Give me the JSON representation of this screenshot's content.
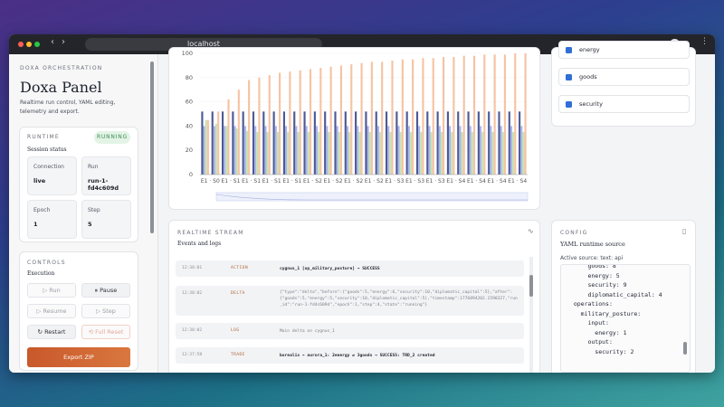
{
  "browser": {
    "url": "localhost"
  },
  "sidebar": {
    "eyebrow": "DOXA ORCHESTRATION",
    "title": "Doxa Panel",
    "subtitle": "Realtime run control, YAML editing, telemetry and export.",
    "runtime": {
      "heading": "RUNTIME",
      "status": "RUNNING",
      "caption": "Session status",
      "fields": [
        {
          "label": "Connection",
          "value": "live"
        },
        {
          "label": "Run",
          "value": "run-1-fd4c609d"
        },
        {
          "label": "Epoch",
          "value": "1"
        },
        {
          "label": "Step",
          "value": "5"
        }
      ]
    },
    "controls": {
      "heading": "CONTROLS",
      "caption": "Execution",
      "buttons": [
        "Run",
        "Pause",
        "Resume",
        "Step",
        "Restart",
        "Full Reset"
      ],
      "export": "Export ZIP"
    }
  },
  "chart_data": {
    "type": "bar",
    "categories": [
      "E1 · S0",
      null,
      "E1 · S1",
      null,
      "E1 · S1",
      null,
      "E1 · S1",
      null,
      "E1 · S1",
      null,
      "E1 · S2",
      null,
      "E1 · S2",
      null,
      "E1 · S2",
      null,
      "E1 · S2",
      null,
      "E1 · S3",
      null,
      "E1 · S3",
      null,
      "E1 · S3",
      null,
      "E1 · S4",
      null,
      "E1 · S4",
      null,
      "E1 · S4",
      null,
      "E1 · S4",
      null
    ],
    "series": [
      {
        "color": "#4d5a96",
        "values": [
          52,
          52,
          52,
          52,
          52,
          52,
          52,
          52,
          52,
          52,
          52,
          52,
          52,
          52,
          52,
          52,
          52,
          52,
          52,
          52,
          52,
          52,
          52,
          52,
          52,
          52,
          52,
          52,
          52,
          52,
          52,
          52
        ]
      },
      {
        "color": "#a9b4ea",
        "values": [
          40,
          40,
          40,
          40,
          40,
          40,
          40,
          40,
          40,
          40,
          40,
          40,
          40,
          40,
          40,
          40,
          40,
          40,
          40,
          40,
          40,
          40,
          40,
          40,
          40,
          40,
          40,
          40,
          40,
          40,
          40,
          40
        ]
      },
      {
        "color": "#c6e4b2",
        "values": [
          45,
          42,
          40,
          38,
          36,
          35,
          35,
          35,
          35,
          35,
          35,
          35,
          35,
          35,
          35,
          35,
          35,
          35,
          35,
          35,
          35,
          35,
          35,
          35,
          35,
          35,
          35,
          35,
          35,
          35,
          35,
          35
        ]
      },
      {
        "color": "#f6c3a3",
        "values": [
          45,
          52,
          62,
          70,
          78,
          80,
          82,
          84,
          85,
          86,
          87,
          88,
          89,
          90,
          91,
          92,
          93,
          93,
          94,
          95,
          95,
          96,
          96,
          97,
          97,
          98,
          98,
          99,
          99,
          99,
          100,
          100
        ]
      }
    ],
    "ylim": [
      0,
      100
    ],
    "yticks": [
      0,
      20,
      40,
      60,
      80,
      100
    ]
  },
  "filters": {
    "items": [
      "energy",
      "goods",
      "security"
    ]
  },
  "stream": {
    "heading": "REALTIME STREAM",
    "caption": "Events and logs",
    "rows": [
      {
        "time": "12:38:01",
        "kind": "ACTION",
        "text": "cygnus_1 [op_military_posture] → SUCCESS"
      },
      {
        "time": "12:38:02",
        "kind": "DELTA",
        "text": "{\"type\":\"delta\",\"before\":{\"goods\":5,\"energy\":6,\"security\":10,\"diplomatic_capital\":5},\"after\":{\"goods\":5,\"energy\":5,\"security\":10,\"diplomatic_capital\":5},\"timestamp\":1776894202.1598327,\"run_id\":\"run-1-fd4c609d\",\"epoch\":1,\"step\":4,\"state\":\"running\"}"
      },
      {
        "time": "12:38:02",
        "kind": "LOG",
        "text": "Main delta on cygnus_1"
      },
      {
        "time": "12:37:58",
        "kind": "TRADE",
        "text": "borealis → aurora_1: 2energy ⇄ 3goods → SUCCESS: TRD_2 created"
      }
    ]
  },
  "config": {
    "heading": "CONFIG",
    "caption": "YAML runtime source",
    "source": "Active source: text: api",
    "lines": [
      "      goods: 8",
      "      energy: 5",
      "      security: 9",
      "      diplomatic_capital: 4",
      "  operations:",
      "    military_posture:",
      "      input:",
      "        energy: 1",
      "      output:",
      "        security: 2"
    ]
  }
}
